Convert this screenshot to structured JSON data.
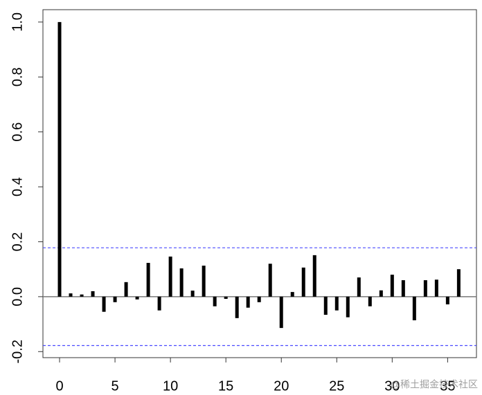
{
  "chart_data": {
    "type": "acf",
    "x": [
      0,
      1,
      2,
      3,
      4,
      5,
      6,
      7,
      8,
      9,
      10,
      11,
      12,
      13,
      14,
      15,
      16,
      17,
      18,
      19,
      20,
      21,
      22,
      23,
      24,
      25,
      26,
      27,
      28,
      29,
      30,
      31,
      32,
      33,
      34,
      35,
      36
    ],
    "values": [
      1.0,
      0.012,
      0.008,
      0.02,
      -0.055,
      -0.02,
      0.053,
      -0.01,
      0.123,
      -0.05,
      0.146,
      0.103,
      0.022,
      0.113,
      -0.035,
      -0.008,
      -0.078,
      -0.04,
      -0.02,
      0.12,
      -0.114,
      0.017,
      0.106,
      0.151,
      -0.066,
      -0.05,
      -0.075,
      0.07,
      -0.035,
      0.023,
      0.08,
      0.06,
      -0.086,
      0.06,
      0.062,
      -0.028,
      0.1
    ],
    "color": "#000000",
    "confidence_bounds": [
      0.178,
      -0.178
    ],
    "confidence_color": "#4a4aff",
    "xlim": [
      -1.5,
      37.6
    ],
    "ylim": [
      -0.222,
      1.045
    ],
    "xticks": [
      0,
      5,
      10,
      15,
      20,
      25,
      30,
      35
    ],
    "yticks": [
      -0.2,
      {
        "value": 0,
        "label": "0.0"
      },
      0.2,
      0.4,
      0.6,
      0.8,
      {
        "value": 1,
        "label": "1.0"
      }
    ],
    "watermark": "@稀土掘金技术社区"
  }
}
